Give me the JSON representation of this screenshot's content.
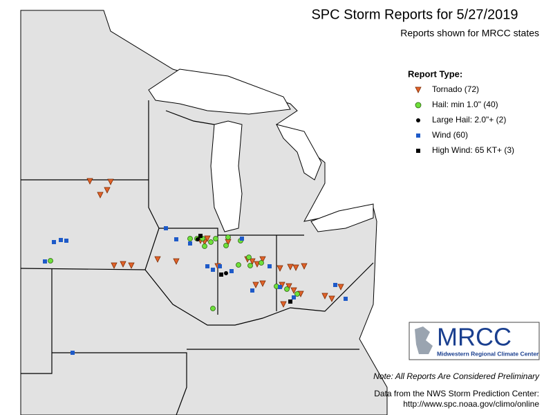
{
  "header": {
    "title": "SPC Storm Reports for 5/27/2019",
    "subtitle": "Reports shown for MRCC states"
  },
  "legend": {
    "heading": "Report Type:",
    "items": [
      "Tornado (72)",
      "Hail: min 1.0\" (40)",
      "Large Hail: 2.0\"+ (2)",
      "Wind (60)",
      "High Wind: 65 KT+ (3)"
    ]
  },
  "logo": {
    "name": "MRCC",
    "full_name": "Midwestern Regional Climate Center"
  },
  "footer": {
    "note": "Note: All Reports Are Considered Preliminary",
    "source": "Data from the NWS Storm Prediction Center:",
    "url": "http://www.spc.noaa.gov/climo/online"
  }
}
